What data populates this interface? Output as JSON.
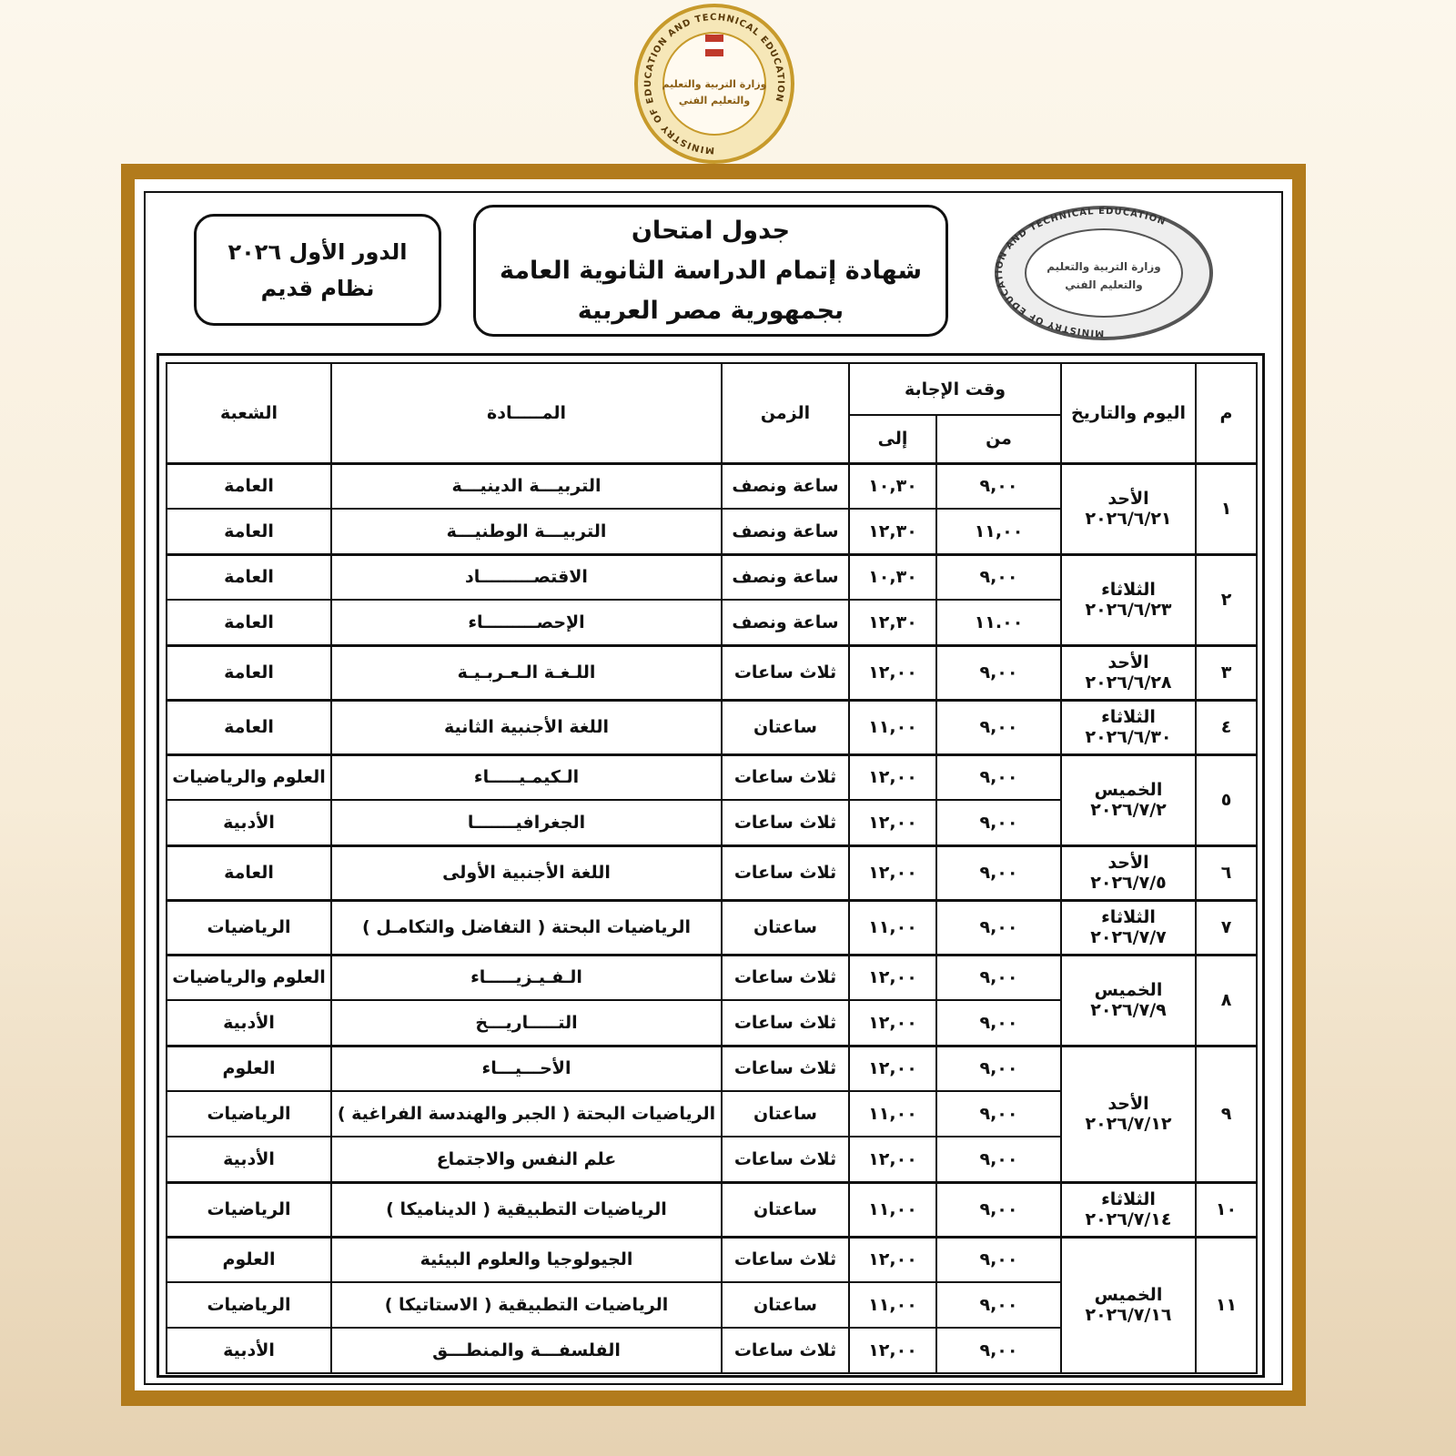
{
  "logo": {
    "arabic_top": "وزارة التربية والتعليم",
    "arabic_bottom": "والتعليم الفني",
    "english": "MINISTRY OF EDUCATION AND TECHNICAL EDUCATION"
  },
  "header": {
    "title_lines": [
      "جدول امتحان",
      "شهادة إتمام الدراسة الثانوية العامة",
      "بجمهورية مصر العربية"
    ],
    "session": "الدور الأول ٢٠٢٦",
    "system": "نظام قديم"
  },
  "table": {
    "headers": {
      "number": "م",
      "day_date": "اليوم والتاريخ",
      "answer_time": "وقت الإجابة",
      "from": "من",
      "to": "إلى",
      "duration": "الزمن",
      "subject": "المـــــادة",
      "division": "الشعبة"
    },
    "groups": [
      {
        "number": "١",
        "day": "الأحد",
        "date": "٢٠٢٦/٦/٢١",
        "exams": [
          {
            "from": "٩,٠٠",
            "to": "١٠,٣٠",
            "duration": "ساعة ونصف",
            "subject": "التربيـــة الدينيـــة",
            "division": "العامة"
          },
          {
            "from": "١١,٠٠",
            "to": "١٢,٣٠",
            "duration": "ساعة ونصف",
            "subject": "التربيـــة الوطنيـــة",
            "division": "العامة"
          }
        ]
      },
      {
        "number": "٢",
        "day": "الثلاثاء",
        "date": "٢٠٢٦/٦/٢٣",
        "exams": [
          {
            "from": "٩,٠٠",
            "to": "١٠,٣٠",
            "duration": "ساعة ونصف",
            "subject": "الاقتصـــــــــاد",
            "division": "العامة"
          },
          {
            "from": "١١.٠٠",
            "to": "١٢,٣٠",
            "duration": "ساعة ونصف",
            "subject": "الإحصـــــــــاء",
            "division": "العامة"
          }
        ]
      },
      {
        "number": "٣",
        "day": "الأحد",
        "date": "٢٠٢٦/٦/٢٨",
        "exams": [
          {
            "from": "٩,٠٠",
            "to": "١٢,٠٠",
            "duration": "ثلاث ساعات",
            "subject": "اللـغـة الـعـربـيـة",
            "division": "العامة"
          }
        ]
      },
      {
        "number": "٤",
        "day": "الثلاثاء",
        "date": "٢٠٢٦/٦/٣٠",
        "exams": [
          {
            "from": "٩,٠٠",
            "to": "١١,٠٠",
            "duration": "ساعتان",
            "subject": "اللغة الأجنبية الثانية",
            "division": "العامة"
          }
        ]
      },
      {
        "number": "٥",
        "day": "الخميس",
        "date": "٢٠٢٦/٧/٢",
        "exams": [
          {
            "from": "٩,٠٠",
            "to": "١٢,٠٠",
            "duration": "ثلاث ساعات",
            "subject": "الـكيمـيـــــاء",
            "division": "العلوم والرياضيات"
          },
          {
            "from": "٩,٠٠",
            "to": "١٢,٠٠",
            "duration": "ثلاث ساعات",
            "subject": "الجغرافيـــــــا",
            "division": "الأدبية"
          }
        ]
      },
      {
        "number": "٦",
        "day": "الأحد",
        "date": "٢٠٢٦/٧/٥",
        "exams": [
          {
            "from": "٩,٠٠",
            "to": "١٢,٠٠",
            "duration": "ثلاث ساعات",
            "subject": "اللغة الأجنبية الأولى",
            "division": "العامة"
          }
        ]
      },
      {
        "number": "٧",
        "day": "الثلاثاء",
        "date": "٢٠٢٦/٧/٧",
        "exams": [
          {
            "from": "٩,٠٠",
            "to": "١١,٠٠",
            "duration": "ساعتان",
            "subject": "الرياضيات البحتة ( التفاضل والتكامـل )",
            "division": "الرياضيات"
          }
        ]
      },
      {
        "number": "٨",
        "day": "الخميس",
        "date": "٢٠٢٦/٧/٩",
        "exams": [
          {
            "from": "٩,٠٠",
            "to": "١٢,٠٠",
            "duration": "ثلاث ساعات",
            "subject": "الـفـيـزيـــــاء",
            "division": "العلوم والرياضيات"
          },
          {
            "from": "٩,٠٠",
            "to": "١٢,٠٠",
            "duration": "ثلاث ساعات",
            "subject": "التـــــاريـــخ",
            "division": "الأدبية"
          }
        ]
      },
      {
        "number": "٩",
        "day": "الأحد",
        "date": "٢٠٢٦/٧/١٢",
        "exams": [
          {
            "from": "٩,٠٠",
            "to": "١٢,٠٠",
            "duration": "ثلاث ساعات",
            "subject": "الأحـــيـــاء",
            "division": "العلوم"
          },
          {
            "from": "٩,٠٠",
            "to": "١١,٠٠",
            "duration": "ساعتان",
            "subject": "الرياضيات البحتة ( الجبر والهندسة الفراغية )",
            "division": "الرياضيات"
          },
          {
            "from": "٩,٠٠",
            "to": "١٢,٠٠",
            "duration": "ثلاث ساعات",
            "subject": "علم النفس والاجتماع",
            "division": "الأدبية"
          }
        ]
      },
      {
        "number": "١٠",
        "day": "الثلاثاء",
        "date": "٢٠٢٦/٧/١٤",
        "exams": [
          {
            "from": "٩,٠٠",
            "to": "١١,٠٠",
            "duration": "ساعتان",
            "subject": "الرياضيات التطبيقية ( الديناميكا )",
            "division": "الرياضيات"
          }
        ]
      },
      {
        "number": "١١",
        "day": "الخميس",
        "date": "٢٠٢٦/٧/١٦",
        "exams": [
          {
            "from": "٩,٠٠",
            "to": "١٢,٠٠",
            "duration": "ثلاث ساعات",
            "subject": "الجيولوجيا والعلوم البيئية",
            "division": "العلوم"
          },
          {
            "from": "٩,٠٠",
            "to": "١١,٠٠",
            "duration": "ساعتان",
            "subject": "الرياضيات التطبيقية ( الاستاتيكا )",
            "division": "الرياضيات"
          },
          {
            "from": "٩,٠٠",
            "to": "١٢,٠٠",
            "duration": "ثلاث ساعات",
            "subject": "الفلسفـــة والمنطـــق",
            "division": "الأدبية"
          }
        ]
      }
    ]
  }
}
